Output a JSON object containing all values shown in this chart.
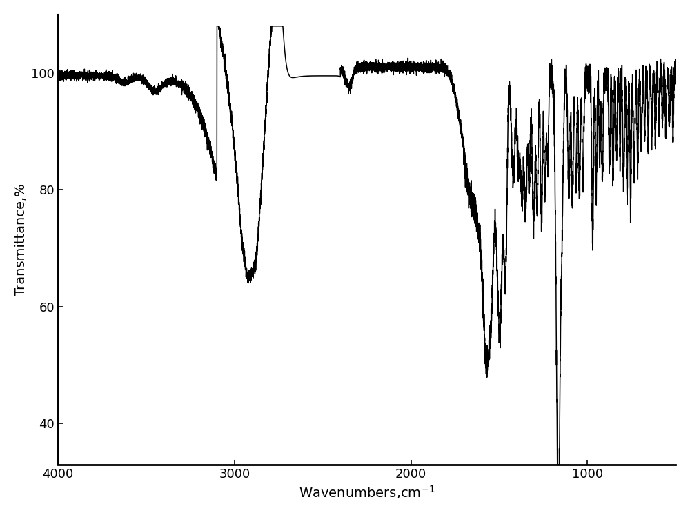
{
  "xlabel": "Wavenumbers,cm$^{-1}$",
  "ylabel": "Transmittance,%",
  "xlim": [
    4000,
    500
  ],
  "ylim": [
    33,
    110
  ],
  "yticks": [
    40,
    60,
    80,
    100
  ],
  "xticks": [
    4000,
    3000,
    2000,
    1000
  ],
  "line_color": "#000000",
  "line_width": 1.1,
  "background_color": "#ffffff",
  "axis_fontsize": 14,
  "tick_fontsize": 13
}
